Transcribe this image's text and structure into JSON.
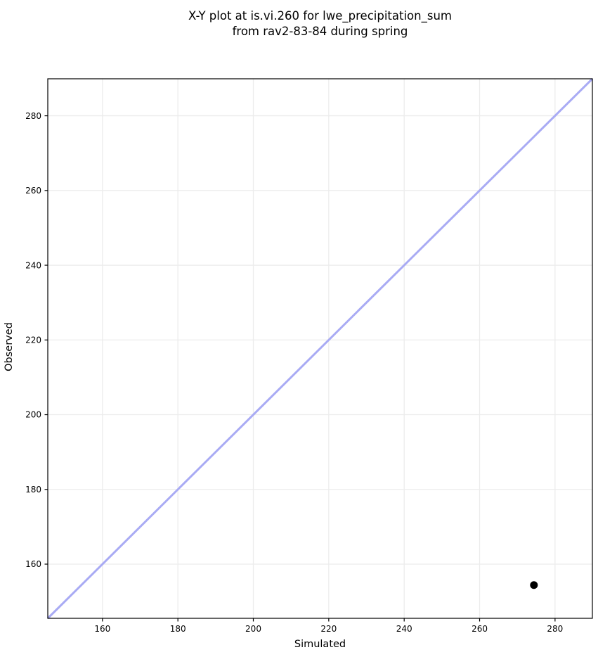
{
  "chart_data": {
    "type": "scatter",
    "title_line1": "X-Y plot at is.vi.260 for lwe_precipitation_sum",
    "title_line2": "from rav2-83-84 during spring",
    "xlabel": "Simulated",
    "ylabel": "Observed",
    "xlim": [
      145.5,
      289.9
    ],
    "ylim": [
      145.5,
      289.9
    ],
    "xticks": [
      160,
      180,
      200,
      220,
      240,
      260,
      280
    ],
    "yticks": [
      160,
      180,
      200,
      220,
      240,
      260,
      280
    ],
    "grid": true,
    "legend": "none",
    "identity_line": {
      "x1": 145.5,
      "y1": 145.5,
      "x2": 289.9,
      "y2": 289.9,
      "color": "#a9abf4",
      "width": 3
    },
    "series": [
      {
        "name": "observed-vs-simulated",
        "marker": "circle",
        "color": "#000000",
        "radius": 5.5,
        "points": [
          {
            "x": 274.4,
            "y": 154.4
          }
        ]
      }
    ],
    "grid_color": "#ececec",
    "spine_color": "#000000",
    "background": "#ffffff"
  }
}
